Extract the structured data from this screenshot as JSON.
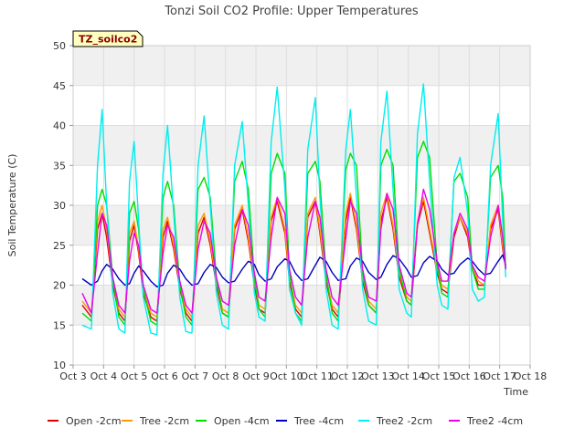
{
  "chart_data": {
    "type": "line",
    "title": "Tonzi Soil CO2 Profile: Upper Temperatures",
    "xlabel": "Time",
    "ylabel": "Soil Temperature (C)",
    "badge": "TZ_soilco2",
    "ylim": [
      10,
      50
    ],
    "yticks": [
      10,
      15,
      20,
      25,
      30,
      35,
      40,
      45,
      50
    ],
    "xlim": [
      3,
      18
    ],
    "xticks": [
      {
        "value": 3,
        "label": "Oct 3"
      },
      {
        "value": 4,
        "label": "Oct 4"
      },
      {
        "value": 5,
        "label": "Oct 5"
      },
      {
        "value": 6,
        "label": "Oct 6"
      },
      {
        "value": 7,
        "label": "Oct 7"
      },
      {
        "value": 8,
        "label": "Oct 8"
      },
      {
        "value": 9,
        "label": "Oct 9"
      },
      {
        "value": 10,
        "label": "Oct 10"
      },
      {
        "value": 11,
        "label": "Oct 11"
      },
      {
        "value": 12,
        "label": "Oct 12"
      },
      {
        "value": 13,
        "label": "Oct 13"
      },
      {
        "value": 14,
        "label": "Oct 14"
      },
      {
        "value": 15,
        "label": "Oct 15"
      },
      {
        "value": 16,
        "label": "Oct 16"
      },
      {
        "value": 17,
        "label": "Oct 17"
      },
      {
        "value": 18,
        "label": "Oct 18"
      }
    ],
    "grid": true,
    "legend_position": "bottom",
    "series": [
      {
        "name": "Open -2cm",
        "color": "#dd0000",
        "x": [
          3.3,
          3.6,
          3.8,
          3.95,
          4.1,
          4.3,
          4.5,
          4.7,
          4.85,
          5.0,
          5.15,
          5.3,
          5.55,
          5.75,
          5.95,
          6.1,
          6.3,
          6.5,
          6.7,
          6.9,
          7.1,
          7.3,
          7.5,
          7.7,
          7.9,
          8.1,
          8.3,
          8.55,
          8.75,
          8.95,
          9.1,
          9.3,
          9.5,
          9.7,
          9.95,
          10.1,
          10.3,
          10.5,
          10.7,
          10.95,
          11.1,
          11.3,
          11.5,
          11.7,
          11.95,
          12.1,
          12.3,
          12.5,
          12.7,
          12.95,
          13.1,
          13.3,
          13.5,
          13.7,
          13.95,
          14.1,
          14.3,
          14.5,
          14.7,
          14.95,
          15.1,
          15.3,
          15.5,
          15.7,
          15.95,
          16.1,
          16.3,
          16.5,
          16.7,
          16.95,
          17.1,
          17.2
        ],
        "y": [
          17.5,
          16.0,
          27.0,
          29.0,
          26.0,
          20.0,
          16.5,
          15.5,
          25.5,
          27.5,
          24.0,
          19.0,
          16.0,
          15.5,
          26.0,
          28.0,
          24.5,
          19.5,
          16.5,
          15.5,
          26.5,
          28.5,
          25.0,
          20.0,
          16.5,
          16.0,
          27.0,
          29.5,
          25.5,
          20.0,
          17.0,
          16.5,
          28.0,
          30.5,
          26.5,
          20.5,
          17.0,
          16.0,
          28.5,
          30.5,
          26.5,
          20.5,
          17.0,
          16.0,
          28.0,
          31.0,
          27.0,
          20.5,
          17.5,
          16.5,
          28.0,
          31.0,
          27.0,
          21.0,
          18.0,
          17.5,
          27.5,
          30.5,
          26.5,
          21.5,
          19.5,
          19.0,
          26.0,
          28.5,
          26.0,
          22.0,
          20.0,
          20.0,
          27.0,
          29.5,
          24.5,
          22.0
        ]
      },
      {
        "name": "Tree -2cm",
        "color": "#ff9900",
        "x": [
          3.3,
          3.6,
          3.8,
          3.95,
          4.1,
          4.3,
          4.5,
          4.7,
          4.85,
          5.0,
          5.15,
          5.3,
          5.55,
          5.75,
          5.95,
          6.1,
          6.3,
          6.5,
          6.7,
          6.9,
          7.1,
          7.3,
          7.5,
          7.7,
          7.9,
          8.1,
          8.3,
          8.55,
          8.75,
          8.95,
          9.1,
          9.3,
          9.5,
          9.7,
          9.95,
          10.1,
          10.3,
          10.5,
          10.7,
          10.95,
          11.1,
          11.3,
          11.5,
          11.7,
          11.95,
          12.1,
          12.3,
          12.5,
          12.7,
          12.95,
          13.1,
          13.3,
          13.5,
          13.7,
          13.95,
          14.1,
          14.3,
          14.5,
          14.7,
          14.95,
          15.1,
          15.3,
          15.5,
          15.7,
          15.95,
          16.1,
          16.3,
          16.5,
          16.7,
          16.95,
          17.1,
          17.2
        ],
        "y": [
          18.0,
          16.5,
          28.0,
          30.0,
          27.0,
          20.5,
          17.0,
          16.0,
          26.5,
          28.0,
          24.5,
          19.5,
          16.5,
          16.0,
          27.0,
          28.5,
          25.0,
          20.0,
          17.0,
          16.0,
          27.5,
          29.0,
          25.5,
          20.5,
          17.0,
          16.5,
          27.5,
          30.0,
          26.0,
          20.5,
          17.5,
          17.0,
          28.5,
          31.0,
          27.0,
          21.0,
          17.5,
          16.5,
          29.0,
          31.0,
          27.0,
          21.0,
          17.5,
          16.5,
          29.0,
          31.5,
          27.5,
          21.0,
          18.0,
          17.0,
          29.0,
          31.5,
          27.5,
          21.5,
          18.5,
          18.0,
          28.0,
          31.0,
          27.0,
          22.0,
          20.0,
          19.5,
          26.5,
          28.5,
          26.5,
          22.5,
          20.5,
          20.0,
          27.5,
          30.0,
          25.0,
          22.0
        ]
      },
      {
        "name": "Open -4cm",
        "color": "#00dd00",
        "x": [
          3.3,
          3.6,
          3.8,
          3.95,
          4.1,
          4.3,
          4.5,
          4.7,
          4.85,
          5.0,
          5.15,
          5.3,
          5.55,
          5.75,
          5.95,
          6.1,
          6.3,
          6.5,
          6.7,
          6.9,
          7.1,
          7.3,
          7.5,
          7.7,
          7.9,
          8.1,
          8.3,
          8.55,
          8.75,
          8.95,
          9.1,
          9.3,
          9.5,
          9.7,
          9.95,
          10.1,
          10.3,
          10.5,
          10.7,
          10.95,
          11.1,
          11.3,
          11.5,
          11.7,
          11.95,
          12.1,
          12.3,
          12.5,
          12.7,
          12.95,
          13.1,
          13.3,
          13.5,
          13.7,
          13.95,
          14.1,
          14.3,
          14.5,
          14.7,
          14.95,
          15.1,
          15.3,
          15.5,
          15.7,
          15.95,
          16.1,
          16.3,
          16.5,
          16.7,
          16.95,
          17.1,
          17.2
        ],
        "y": [
          16.5,
          15.5,
          30.0,
          32.0,
          30.0,
          21.0,
          16.0,
          15.0,
          29.0,
          30.5,
          27.0,
          19.5,
          15.5,
          15.0,
          31.0,
          33.0,
          30.0,
          20.0,
          16.0,
          15.0,
          32.0,
          33.5,
          31.0,
          21.0,
          16.5,
          16.0,
          33.0,
          35.5,
          32.0,
          21.0,
          17.0,
          16.0,
          34.0,
          36.5,
          34.0,
          21.5,
          16.5,
          15.5,
          34.0,
          35.5,
          33.0,
          21.5,
          16.5,
          15.5,
          34.5,
          36.5,
          35.0,
          21.5,
          17.5,
          16.5,
          35.0,
          37.0,
          35.0,
          22.0,
          18.0,
          17.5,
          36.0,
          38.0,
          36.0,
          22.5,
          19.0,
          18.5,
          33.0,
          34.0,
          31.0,
          22.0,
          19.5,
          19.5,
          33.5,
          35.0,
          31.0,
          22.0
        ]
      },
      {
        "name": "Tree -4cm",
        "color": "#0000bb",
        "x": [
          3.3,
          3.6,
          3.8,
          3.95,
          4.1,
          4.3,
          4.5,
          4.7,
          4.85,
          5.0,
          5.15,
          5.3,
          5.55,
          5.75,
          5.95,
          6.1,
          6.3,
          6.5,
          6.7,
          6.9,
          7.1,
          7.3,
          7.5,
          7.7,
          7.9,
          8.1,
          8.3,
          8.55,
          8.75,
          8.95,
          9.1,
          9.3,
          9.5,
          9.7,
          9.95,
          10.1,
          10.3,
          10.5,
          10.7,
          10.95,
          11.1,
          11.3,
          11.5,
          11.7,
          11.95,
          12.1,
          12.3,
          12.5,
          12.7,
          12.95,
          13.1,
          13.3,
          13.5,
          13.7,
          13.95,
          14.1,
          14.3,
          14.5,
          14.7,
          14.95,
          15.1,
          15.3,
          15.5,
          15.7,
          15.95,
          16.1,
          16.3,
          16.5,
          16.7,
          16.95,
          17.1,
          17.2
        ],
        "y": [
          20.8,
          20.0,
          20.5,
          21.8,
          22.6,
          22.0,
          20.8,
          20.0,
          20.2,
          21.5,
          22.4,
          21.8,
          20.5,
          19.8,
          20.0,
          21.5,
          22.5,
          22.0,
          20.8,
          20.0,
          20.2,
          21.6,
          22.6,
          22.2,
          21.0,
          20.3,
          20.5,
          22.0,
          23.0,
          22.6,
          21.3,
          20.5,
          20.8,
          22.3,
          23.3,
          23.0,
          21.5,
          20.6,
          20.8,
          22.5,
          23.5,
          23.0,
          21.6,
          20.6,
          20.8,
          22.4,
          23.4,
          23.0,
          21.6,
          20.7,
          21.0,
          22.6,
          23.7,
          23.3,
          22.0,
          21.0,
          21.2,
          22.8,
          23.6,
          23.0,
          22.0,
          21.3,
          21.5,
          22.6,
          23.4,
          23.0,
          22.0,
          21.3,
          21.5,
          23.0,
          23.8,
          22.5
        ]
      },
      {
        "name": "Tree2 -2cm",
        "color": "#00eeee",
        "x": [
          3.3,
          3.6,
          3.8,
          3.95,
          4.1,
          4.3,
          4.5,
          4.7,
          4.85,
          5.0,
          5.15,
          5.3,
          5.55,
          5.75,
          5.95,
          6.1,
          6.3,
          6.5,
          6.7,
          6.9,
          7.1,
          7.3,
          7.5,
          7.7,
          7.9,
          8.1,
          8.3,
          8.55,
          8.75,
          8.95,
          9.1,
          9.3,
          9.5,
          9.7,
          9.95,
          10.1,
          10.3,
          10.5,
          10.7,
          10.95,
          11.1,
          11.3,
          11.5,
          11.7,
          11.95,
          12.1,
          12.3,
          12.5,
          12.7,
          12.95,
          13.1,
          13.3,
          13.5,
          13.7,
          13.95,
          14.1,
          14.3,
          14.5,
          14.7,
          14.95,
          15.1,
          15.3,
          15.5,
          15.7,
          15.95,
          16.1,
          16.3,
          16.5,
          16.7,
          16.95,
          17.1,
          17.2
        ],
        "y": [
          15.0,
          14.5,
          35.0,
          42.0,
          30.0,
          19.0,
          14.5,
          14.0,
          33.0,
          38.0,
          28.0,
          18.5,
          14.0,
          13.8,
          34.0,
          40.0,
          29.0,
          18.5,
          14.2,
          14.0,
          35.0,
          41.2,
          30.0,
          19.0,
          15.0,
          14.5,
          35.0,
          40.5,
          30.0,
          19.0,
          16.0,
          15.5,
          38.0,
          44.8,
          32.0,
          19.5,
          16.5,
          15.0,
          37.0,
          43.5,
          31.0,
          19.5,
          15.0,
          14.5,
          37.0,
          42.0,
          31.0,
          19.5,
          15.5,
          15.0,
          38.0,
          44.3,
          32.0,
          19.5,
          16.5,
          16.0,
          39.0,
          45.2,
          33.0,
          20.0,
          17.5,
          17.0,
          33.5,
          36.0,
          29.0,
          19.5,
          18.0,
          18.5,
          35.0,
          41.5,
          28.0,
          21.0
        ]
      },
      {
        "name": "Tree2 -4cm",
        "color": "#ee00ee",
        "x": [
          3.3,
          3.6,
          3.8,
          3.95,
          4.1,
          4.3,
          4.5,
          4.7,
          4.85,
          5.0,
          5.15,
          5.3,
          5.55,
          5.75,
          5.95,
          6.1,
          6.3,
          6.5,
          6.7,
          6.9,
          7.1,
          7.3,
          7.5,
          7.7,
          7.9,
          8.1,
          8.3,
          8.55,
          8.75,
          8.95,
          9.1,
          9.3,
          9.5,
          9.7,
          9.95,
          10.1,
          10.3,
          10.5,
          10.7,
          10.95,
          11.1,
          11.3,
          11.5,
          11.7,
          11.95,
          12.1,
          12.3,
          12.5,
          12.7,
          12.95,
          13.1,
          13.3,
          13.5,
          13.7,
          13.95,
          14.1,
          14.3,
          14.5,
          14.7,
          14.95,
          15.1,
          15.3,
          15.5,
          15.7,
          15.95,
          16.1,
          16.3,
          16.5,
          16.7,
          16.95,
          17.1,
          17.2
        ],
        "y": [
          19.0,
          16.5,
          24.0,
          29.0,
          27.5,
          21.0,
          17.5,
          16.5,
          23.0,
          26.5,
          25.0,
          20.0,
          17.0,
          16.5,
          24.0,
          27.5,
          26.0,
          20.5,
          17.5,
          16.5,
          24.5,
          28.0,
          26.5,
          21.0,
          18.0,
          17.5,
          25.0,
          29.5,
          27.5,
          21.5,
          18.5,
          18.0,
          26.0,
          31.0,
          29.0,
          22.0,
          18.5,
          17.5,
          26.0,
          30.5,
          28.5,
          22.0,
          18.5,
          17.5,
          26.0,
          30.5,
          29.0,
          22.0,
          18.5,
          18.0,
          27.0,
          31.5,
          29.5,
          22.5,
          19.0,
          18.5,
          27.5,
          32.0,
          29.5,
          23.0,
          20.5,
          20.5,
          26.5,
          29.0,
          27.0,
          22.5,
          21.0,
          20.5,
          26.0,
          30.0,
          26.0,
          22.0
        ]
      }
    ]
  }
}
